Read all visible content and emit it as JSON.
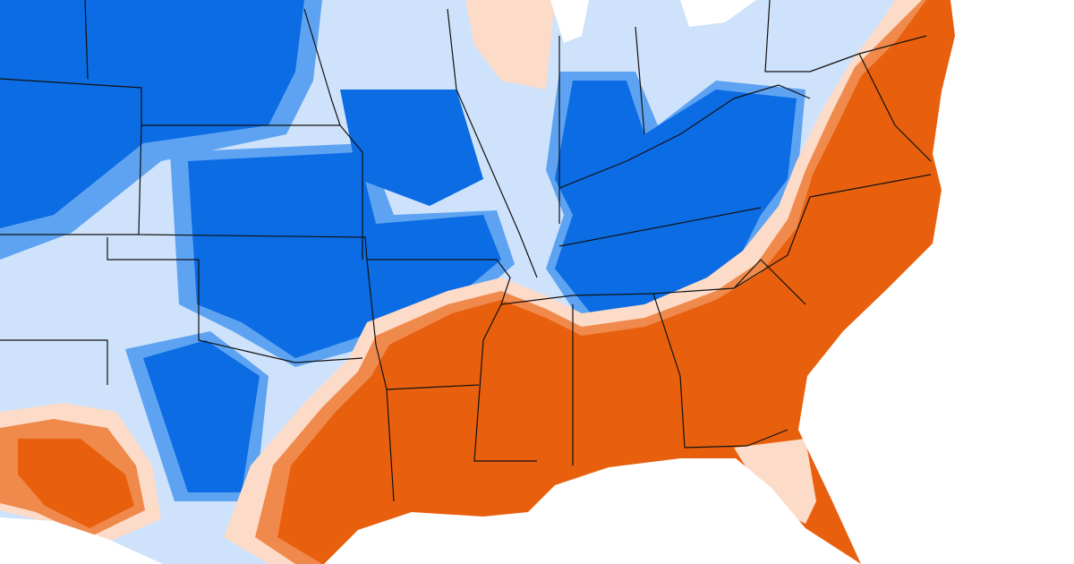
{
  "map": {
    "colors": {
      "base": "#cfe2fb",
      "mid_blue": "#5ea3f2",
      "dark_blue": "#0b6ce4",
      "peach": "#fcdbc8",
      "light_orange": "#f08a4c",
      "orange": "#e8600e",
      "water": "#ffffff",
      "border": "#111111"
    }
  }
}
